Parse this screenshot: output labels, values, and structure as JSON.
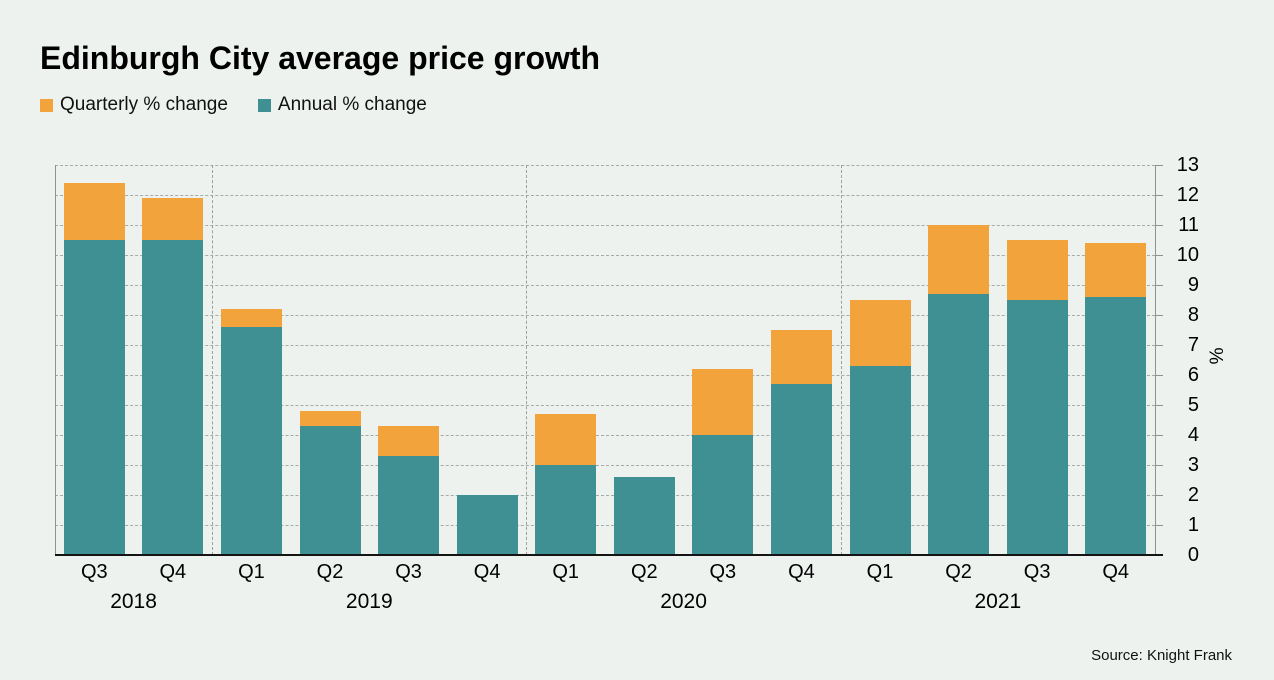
{
  "header": {
    "title": "Edinburgh City average price growth"
  },
  "legend": {
    "items": [
      {
        "label": "Quarterly % change",
        "color": "#f2a33c"
      },
      {
        "label": "Annual % change",
        "color": "#3f9092"
      }
    ]
  },
  "source": {
    "text": "Source: Knight Frank"
  },
  "colors": {
    "background": "#edf2ef",
    "quarterly": "#f2a33c",
    "annual": "#3f9092",
    "gridline": "#a5aba8",
    "axis": "#8d938f",
    "baseline": "#141414"
  },
  "chart_data": {
    "type": "bar",
    "stacked": true,
    "title": "Edinburgh City average price growth",
    "categories": [
      "Q3",
      "Q4",
      "Q1",
      "Q2",
      "Q3",
      "Q4",
      "Q1",
      "Q2",
      "Q3",
      "Q4",
      "Q1",
      "Q2",
      "Q3",
      "Q4"
    ],
    "year_groups": [
      {
        "label": "2018",
        "count": 2
      },
      {
        "label": "2019",
        "count": 4
      },
      {
        "label": "2020",
        "count": 4
      },
      {
        "label": "2021",
        "count": 4
      }
    ],
    "series": [
      {
        "name": "Annual % change",
        "color": "#3f9092",
        "values": [
          10.5,
          10.5,
          7.6,
          4.3,
          3.3,
          2.0,
          3.0,
          2.6,
          4.0,
          5.7,
          6.3,
          8.7,
          8.5,
          8.6
        ]
      },
      {
        "name": "Quarterly % change",
        "color": "#f2a33c",
        "values": [
          1.9,
          1.4,
          0.6,
          0.5,
          1.0,
          0.0,
          1.7,
          0.0,
          2.2,
          1.8,
          2.2,
          2.3,
          2.0,
          1.8
        ]
      }
    ],
    "ylabel": "%",
    "ylim": [
      0,
      13
    ],
    "ytick_step": 1,
    "grid": true,
    "legend_position": "top-left"
  }
}
